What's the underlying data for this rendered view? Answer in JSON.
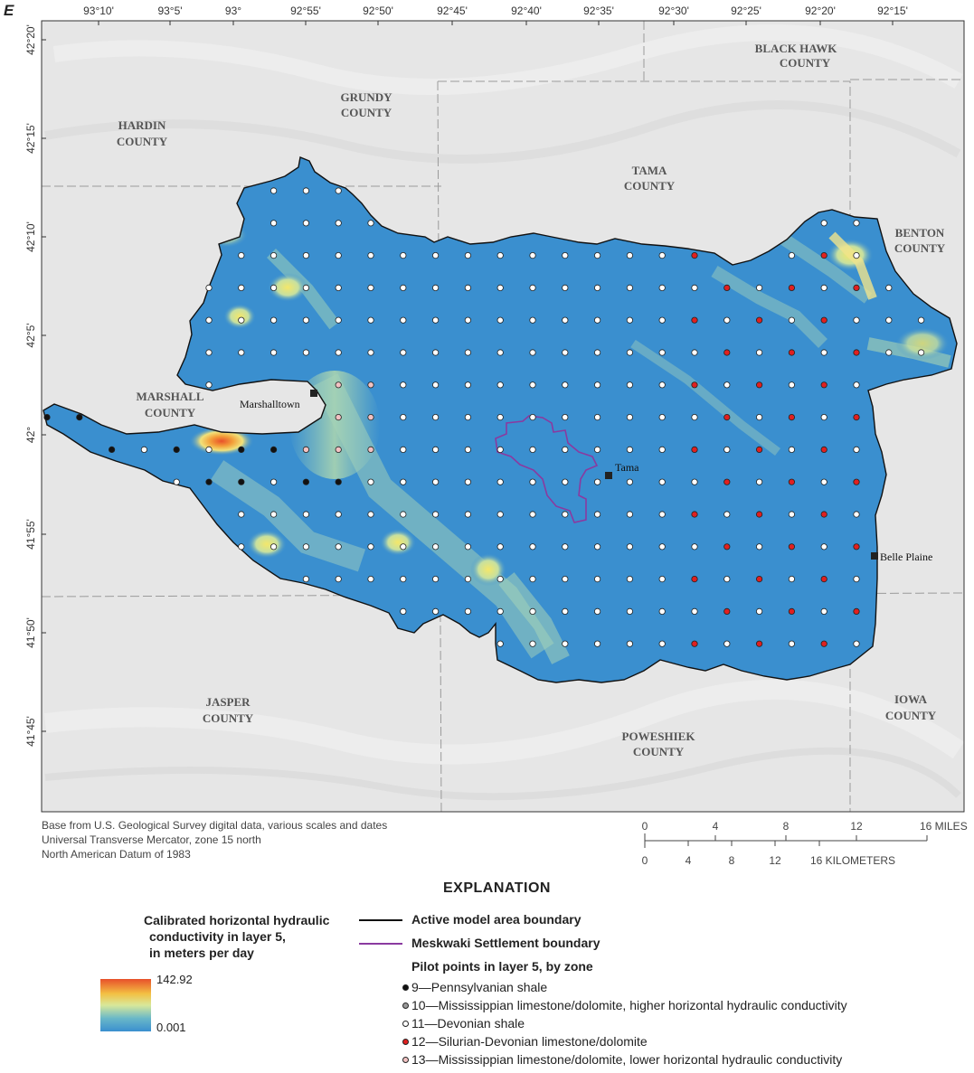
{
  "panel_letter": "E",
  "top_ticks": [
    "93°10'",
    "93°5'",
    "93°",
    "92°55'",
    "92°50'",
    "92°45'",
    "92°40'",
    "92°35'",
    "92°30'",
    "92°25'",
    "92°20'",
    "92°15'"
  ],
  "left_ticks": [
    "42°20'",
    "42°15'",
    "42°10'",
    "42°5'",
    "42°",
    "41°55'",
    "41°50'",
    "41°45'"
  ],
  "counties": [
    {
      "line1": "BLACK HAWK",
      "line2": "COUNTY"
    },
    {
      "line1": "GRUNDY",
      "line2": "COUNTY"
    },
    {
      "line1": "HARDIN",
      "line2": "COUNTY"
    },
    {
      "line1": "TAMA",
      "line2": "COUNTY"
    },
    {
      "line1": "BENTON",
      "line2": "COUNTY"
    },
    {
      "line1": "MARSHALL",
      "line2": "COUNTY"
    },
    {
      "line1": "JASPER",
      "line2": "COUNTY"
    },
    {
      "line1": "POWESHIEK",
      "line2": "COUNTY"
    },
    {
      "line1": "IOWA",
      "line2": "COUNTY"
    }
  ],
  "cities": [
    "Marshalltown",
    "Tama",
    "Belle Plaine"
  ],
  "credits": [
    "Base from U.S. Geological Survey digital data, various scales and dates",
    "Universal Transverse Mercator, zone 15 north",
    "North American Datum of 1983"
  ],
  "scale_bar": {
    "miles_ticks": [
      "0",
      "4",
      "8",
      "12",
      "16 MILES"
    ],
    "km_ticks": [
      "0",
      "4",
      "8",
      "12",
      "16 KILOMETERS"
    ]
  },
  "explanation": {
    "title": "EXPLANATION",
    "colorbar_title": [
      "Calibrated horizontal hydraulic",
      "conductivity in layer 5,",
      "in meters per day"
    ],
    "colorbar_max": "142.92",
    "colorbar_min": "0.001",
    "colors": {
      "low": "#3a8fcf",
      "mid": "#d8e89a",
      "high": "#e8502a"
    },
    "boundary_label": "Active model area boundary",
    "settlement_label": "Meskwaki Settlement boundary",
    "pilot_heading": "Pilot points in layer 5, by zone",
    "pilot_zones": [
      {
        "label": "9—Pennsylvanian shale",
        "color": "#111111"
      },
      {
        "label": "10—Mississippian limestone/dolomite, higher horizontal hydraulic conductivity",
        "color": "#9a9a9a"
      },
      {
        "label": "11—Devonian shale",
        "color": "#ffffff"
      },
      {
        "label": "12—Silurian-Devonian limestone/dolomite",
        "color": "#e02020"
      },
      {
        "label": "13—Mississippian limestone/dolomite, lower horizontal hydraulic conductivity",
        "color": "#f2c2c2"
      }
    ]
  }
}
